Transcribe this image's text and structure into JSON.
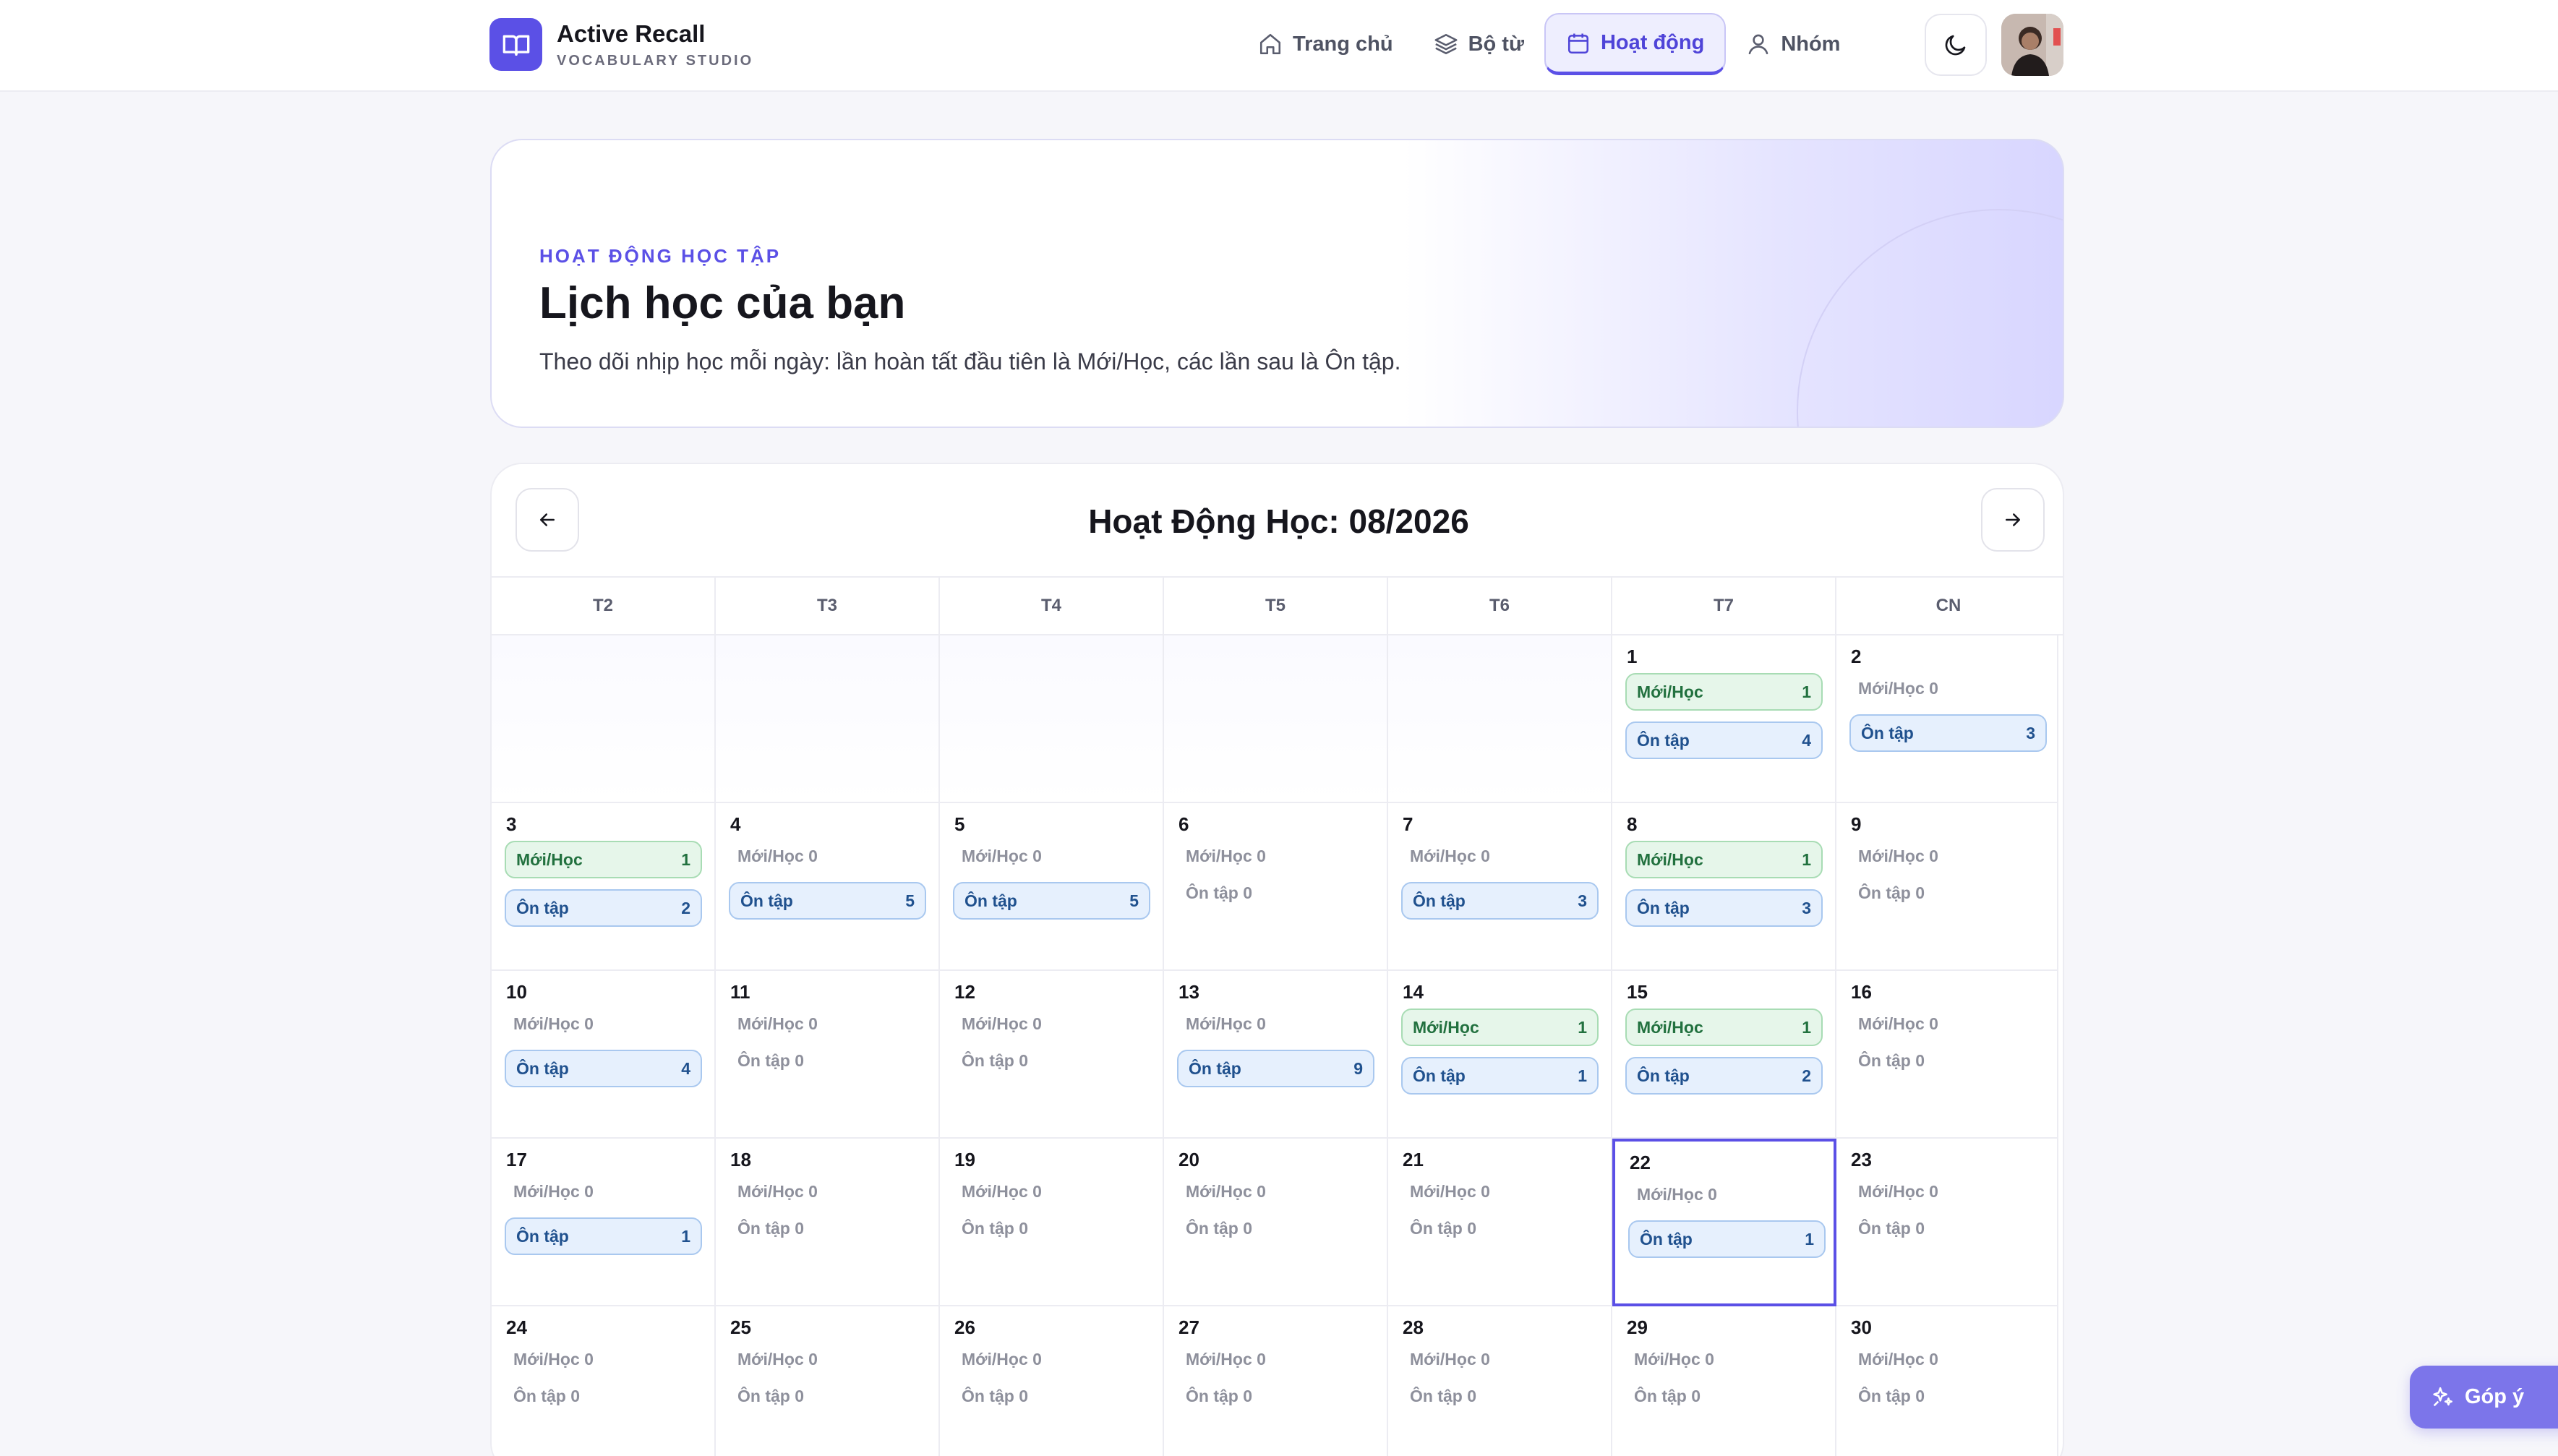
{
  "brand": {
    "title": "Active Recall",
    "subtitle": "VOCABULARY STUDIO"
  },
  "nav": {
    "items": [
      {
        "label": "Trang chủ",
        "icon": "home-icon",
        "active": false
      },
      {
        "label": "Bộ từ",
        "icon": "layers-icon",
        "active": false
      },
      {
        "label": "Hoạt động",
        "icon": "calendar-icon",
        "active": true
      },
      {
        "label": "Nhóm",
        "icon": "user-icon",
        "active": false
      }
    ]
  },
  "hero": {
    "eyebrow": "HOẠT ĐỘNG HỌC TẬP",
    "title": "Lịch học của bạn",
    "description": "Theo dõi nhịp học mỗi ngày: lần hoàn tất đầu tiên là Mới/Học, các lần sau là Ôn tập."
  },
  "calendar": {
    "title": "Hoạt Động Học: 08/2026",
    "weekdays": [
      "T2",
      "T3",
      "T4",
      "T5",
      "T6",
      "T7",
      "CN"
    ],
    "new_label": "Mới/Học",
    "review_label": "Ôn tập",
    "today": 22,
    "days": [
      {
        "day": "1",
        "new": 1,
        "review": 4
      },
      {
        "day": "2",
        "new": 0,
        "review": 3
      },
      {
        "day": "3",
        "new": 1,
        "review": 2
      },
      {
        "day": "4",
        "new": 0,
        "review": 5
      },
      {
        "day": "5",
        "new": 0,
        "review": 5
      },
      {
        "day": "6",
        "new": 0,
        "review": 0
      },
      {
        "day": "7",
        "new": 0,
        "review": 3
      },
      {
        "day": "8",
        "new": 1,
        "review": 3
      },
      {
        "day": "9",
        "new": 0,
        "review": 0
      },
      {
        "day": "10",
        "new": 0,
        "review": 4
      },
      {
        "day": "11",
        "new": 0,
        "review": 0
      },
      {
        "day": "12",
        "new": 0,
        "review": 0
      },
      {
        "day": "13",
        "new": 0,
        "review": 9
      },
      {
        "day": "14",
        "new": 1,
        "review": 1
      },
      {
        "day": "15",
        "new": 1,
        "review": 2
      },
      {
        "day": "16",
        "new": 0,
        "review": 0
      },
      {
        "day": "17",
        "new": 0,
        "review": 1
      },
      {
        "day": "18",
        "new": 0,
        "review": 0
      },
      {
        "day": "19",
        "new": 0,
        "review": 0
      },
      {
        "day": "20",
        "new": 0,
        "review": 0
      },
      {
        "day": "21",
        "new": 0,
        "review": 0
      },
      {
        "day": "22",
        "new": 0,
        "review": 1
      },
      {
        "day": "23",
        "new": 0,
        "review": 0
      },
      {
        "day": "24",
        "new": 0,
        "review": 0
      },
      {
        "day": "25",
        "new": 0,
        "review": 0
      },
      {
        "day": "26",
        "new": 0,
        "review": 0
      },
      {
        "day": "27",
        "new": 0,
        "review": 0
      },
      {
        "day": "28",
        "new": 0,
        "review": 0
      },
      {
        "day": "29",
        "new": 0,
        "review": 0
      },
      {
        "day": "30",
        "new": 0,
        "review": 0
      }
    ]
  },
  "feedback": {
    "label": "Góp ý"
  },
  "colors": {
    "accent": "#5b50e6",
    "new_bg": "#e6f6ea",
    "review_bg": "#e6f0fd"
  }
}
